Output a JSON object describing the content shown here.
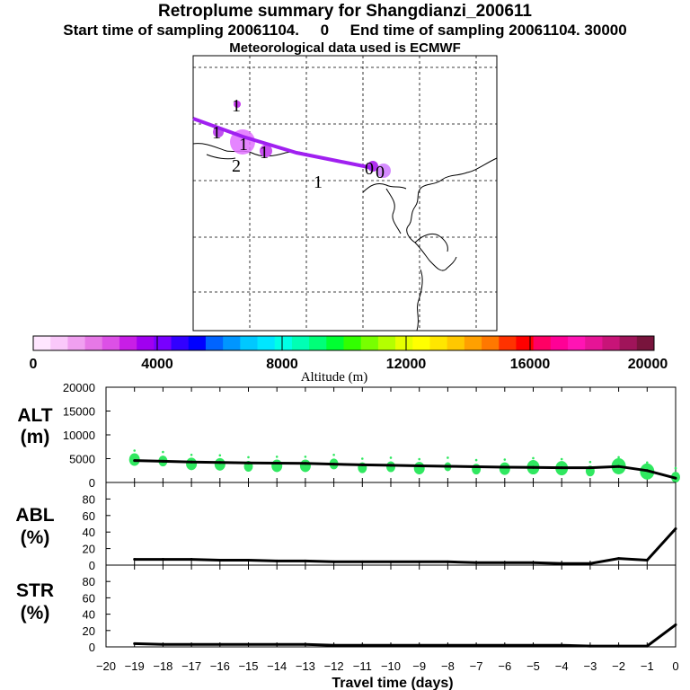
{
  "title": "Retroplume summary for Shangdianzi_200611",
  "subtitle": "Start time of sampling 20061104.     0     End time of sampling 20061104. 30000",
  "meteo_line": "Meteorological data used is ECMWF",
  "colors": {
    "track": "#a020f0",
    "alt_dots": "#30e860",
    "line": "#000000",
    "plume_magenta": "#cc44ee"
  },
  "map": {
    "labels": [
      {
        "text": "1",
        "lon": 0.24,
        "lat": 0.82
      },
      {
        "text": "1",
        "lon": 0.13,
        "lat": 0.7
      },
      {
        "text": "1",
        "lon": 0.29,
        "lat": 0.63
      },
      {
        "text": "1",
        "lon": 0.39,
        "lat": 0.61
      },
      {
        "text": "2",
        "lon": 0.24,
        "lat": 0.57
      },
      {
        "text": "1",
        "lon": 0.7,
        "lat": 0.51
      },
      {
        "text": "0",
        "lon": 1.05,
        "lat": 0.59
      },
      {
        "text": "0",
        "lon": 1.1,
        "lat": 0.58
      }
    ]
  },
  "colorbar": {
    "label": "Altitude (m)",
    "ticks": [
      "0",
      "4000",
      "8000",
      "12000",
      "16000",
      "20000"
    ],
    "colors": [
      "#ffe6ff",
      "#fac8fa",
      "#f0a0f0",
      "#e678e6",
      "#dc50e6",
      "#c81ee6",
      "#a000f0",
      "#7800ff",
      "#3200ff",
      "#0000ff",
      "#0064ff",
      "#0096ff",
      "#00c8ff",
      "#00e6ff",
      "#00ffe6",
      "#00ffb4",
      "#00ff78",
      "#00ff32",
      "#32ff00",
      "#78ff00",
      "#b4ff00",
      "#e6ff00",
      "#ffff00",
      "#ffe600",
      "#ffc800",
      "#ffa000",
      "#ff7800",
      "#ff3200",
      "#ff0000",
      "#ff0064",
      "#ff0096",
      "#ff14b4",
      "#e61496",
      "#c81478",
      "#a0145a",
      "#78143c"
    ]
  },
  "chart_data": [
    {
      "type": "line",
      "name": "altitude",
      "ylabel": "ALT\n(m)",
      "ylabel_lines": [
        "ALT",
        "(m)"
      ],
      "ylim": [
        0,
        20000
      ],
      "yticks": [
        "0",
        "5000",
        "10000",
        "15000",
        "20000"
      ],
      "ytick_values": [
        0,
        5000,
        10000,
        15000,
        20000
      ],
      "x": [
        -19,
        -18,
        -17,
        -16,
        -15,
        -14,
        -13,
        -12,
        -11,
        -10,
        -9,
        -8,
        -7,
        -6,
        -5,
        -4,
        -3,
        -2,
        -1,
        0
      ],
      "values": [
        4600,
        4450,
        4300,
        4200,
        4100,
        4050,
        4000,
        3850,
        3700,
        3600,
        3500,
        3400,
        3300,
        3200,
        3150,
        3100,
        3100,
        3350,
        2500,
        900
      ],
      "spread": [
        {
          "x": -19,
          "y": 4800,
          "r": 6
        },
        {
          "x": -18,
          "y": 4500,
          "r": 5
        },
        {
          "x": -17,
          "y": 3900,
          "r": 6
        },
        {
          "x": -16,
          "y": 3800,
          "r": 6
        },
        {
          "x": -15,
          "y": 3400,
          "r": 5
        },
        {
          "x": -14,
          "y": 3500,
          "r": 6
        },
        {
          "x": -13,
          "y": 3500,
          "r": 6
        },
        {
          "x": -12,
          "y": 3900,
          "r": 5
        },
        {
          "x": -11,
          "y": 3100,
          "r": 5
        },
        {
          "x": -10,
          "y": 3300,
          "r": 5
        },
        {
          "x": -9,
          "y": 3000,
          "r": 6
        },
        {
          "x": -8,
          "y": 3300,
          "r": 4
        },
        {
          "x": -7,
          "y": 2800,
          "r": 5
        },
        {
          "x": -6,
          "y": 2900,
          "r": 6
        },
        {
          "x": -5,
          "y": 3200,
          "r": 7
        },
        {
          "x": -4,
          "y": 3000,
          "r": 7
        },
        {
          "x": -3,
          "y": 2400,
          "r": 5
        },
        {
          "x": -2,
          "y": 3400,
          "r": 8
        },
        {
          "x": -1,
          "y": 2300,
          "r": 8
        },
        {
          "x": 0,
          "y": 1100,
          "r": 5
        }
      ]
    },
    {
      "type": "line",
      "name": "abl",
      "ylabel_lines": [
        "ABL",
        "(%)"
      ],
      "ylim": [
        0,
        100
      ],
      "yticks": [
        "0",
        "20",
        "40",
        "60",
        "80"
      ],
      "ytick_values": [
        0,
        20,
        40,
        60,
        80
      ],
      "x": [
        -19,
        -18,
        -17,
        -16,
        -15,
        -14,
        -13,
        -12,
        -11,
        -10,
        -9,
        -8,
        -7,
        -6,
        -5,
        -4,
        -3,
        -2,
        -1,
        0
      ],
      "values": [
        7,
        7,
        7,
        6,
        6,
        5,
        5,
        4,
        4,
        4,
        4,
        4,
        3,
        3,
        3,
        2,
        2,
        8,
        6,
        44
      ]
    },
    {
      "type": "line",
      "name": "str",
      "ylabel_lines": [
        "STR",
        "(%)"
      ],
      "ylim": [
        0,
        100
      ],
      "yticks": [
        "0",
        "20",
        "40",
        "60",
        "80"
      ],
      "ytick_values": [
        0,
        20,
        40,
        60,
        80
      ],
      "x": [
        -19,
        -18,
        -17,
        -16,
        -15,
        -14,
        -13,
        -12,
        -11,
        -10,
        -9,
        -8,
        -7,
        -6,
        -5,
        -4,
        -3,
        -2,
        -1,
        0
      ],
      "values": [
        4,
        3,
        3,
        3,
        3,
        3,
        3,
        2,
        2,
        2,
        2,
        2,
        2,
        2,
        2,
        2,
        1,
        1,
        1,
        27
      ]
    }
  ],
  "xaxis": {
    "label": "Travel time (days)",
    "ticks": [
      "−20",
      "−19",
      "−18",
      "−17",
      "−16",
      "−15",
      "−14",
      "−13",
      "−12",
      "−11",
      "−10",
      "−9",
      "−8",
      "−7",
      "−6",
      "−5",
      "−4",
      "−3",
      "−2",
      "−1",
      "0"
    ],
    "values": [
      -20,
      -19,
      -18,
      -17,
      -16,
      -15,
      -14,
      -13,
      -12,
      -11,
      -10,
      -9,
      -8,
      -7,
      -6,
      -5,
      -4,
      -3,
      -2,
      -1,
      0
    ]
  }
}
